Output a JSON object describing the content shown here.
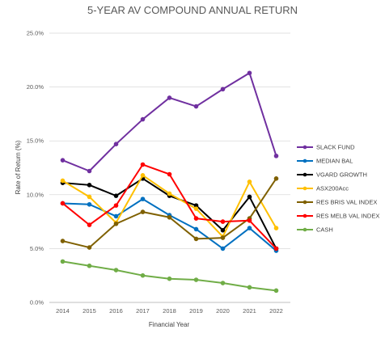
{
  "chart_data": {
    "type": "line",
    "title": "5-YEAR AV COMPOUND ANNUAL RETURN",
    "xlabel": "Financial Year",
    "ylabel": "Rate of Return (%)",
    "categories": [
      "2014",
      "2015",
      "2016",
      "2017",
      "2018",
      "2019",
      "2020",
      "2021",
      "2022"
    ],
    "ylim": [
      0,
      25
    ],
    "yticks": [
      0,
      5,
      10,
      15,
      20,
      25
    ],
    "ytick_labels": [
      "0.0%",
      "5.0%",
      "10.0%",
      "15.0%",
      "20.0%",
      "25.0%"
    ],
    "grid": true,
    "legend_position": "right",
    "series": [
      {
        "name": "SLACK FUND",
        "color": "#7030a0",
        "values": [
          13.2,
          12.2,
          14.7,
          17.0,
          19.0,
          18.2,
          19.8,
          21.3,
          13.6
        ]
      },
      {
        "name": "MEDIAN BAL",
        "color": "#0070c0",
        "values": [
          9.2,
          9.1,
          8.0,
          9.6,
          8.1,
          6.8,
          5.0,
          6.9,
          4.8
        ]
      },
      {
        "name": "VGARD GROWTH",
        "color": "#000000",
        "values": [
          11.1,
          10.9,
          9.9,
          11.5,
          9.9,
          9.0,
          6.7,
          9.8,
          5.0
        ]
      },
      {
        "name": "ASX200Acc",
        "color": "#ffc000",
        "values": [
          11.3,
          9.8,
          7.4,
          11.8,
          10.1,
          8.7,
          6.1,
          11.2,
          6.9
        ]
      },
      {
        "name": "RES BRIS VAL INDEX",
        "color": "#7f6000",
        "values": [
          5.7,
          5.1,
          7.3,
          8.4,
          7.9,
          5.9,
          6.0,
          7.8,
          11.5
        ]
      },
      {
        "name": "RES MELB VAL INDEX",
        "color": "#ff0000",
        "values": [
          9.2,
          7.2,
          9.0,
          12.8,
          11.9,
          7.8,
          7.5,
          7.6,
          5.0
        ]
      },
      {
        "name": "CASH",
        "color": "#70ad47",
        "values": [
          3.8,
          3.4,
          3.0,
          2.5,
          2.2,
          2.1,
          1.8,
          1.4,
          1.1
        ]
      }
    ]
  }
}
